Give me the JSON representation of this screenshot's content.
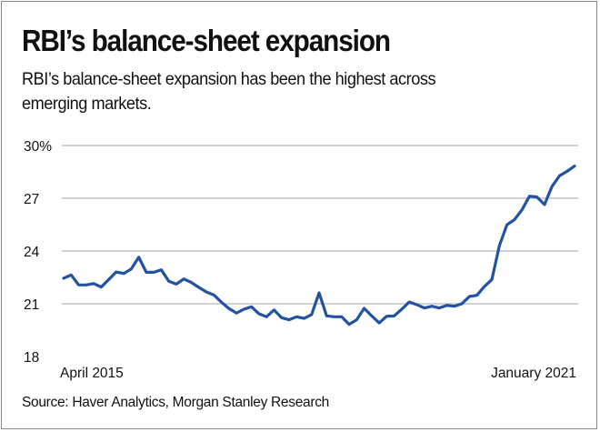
{
  "chart_data": {
    "type": "line",
    "title": "RBI’s balance-sheet expansion",
    "subtitle": "RBI’s balance-sheet expansion has been the highest across emerging markets.",
    "source": "Source: Haver Analytics, Morgan Stanley Research",
    "x_start_label": "April 2015",
    "x_end_label": "January 2021",
    "frequency": "monthly",
    "ylim": [
      18,
      30
    ],
    "y_ticks": [
      30,
      27,
      24,
      21,
      18
    ],
    "y_tick_labels": [
      "30%",
      "27",
      "24",
      "21",
      "18"
    ],
    "grid": true,
    "line_color": "#2352a0",
    "values": [
      22.45,
      22.64,
      22.07,
      22.07,
      22.15,
      21.95,
      22.38,
      22.81,
      22.72,
      22.98,
      23.65,
      22.79,
      22.79,
      22.93,
      22.28,
      22.12,
      22.41,
      22.21,
      21.93,
      21.67,
      21.5,
      21.09,
      20.73,
      20.47,
      20.69,
      20.83,
      20.43,
      20.26,
      20.65,
      20.21,
      20.09,
      20.26,
      20.17,
      20.38,
      21.62,
      20.31,
      20.26,
      20.26,
      19.83,
      20.09,
      20.74,
      20.31,
      19.91,
      20.29,
      20.31,
      20.69,
      21.1,
      20.95,
      20.76,
      20.86,
      20.76,
      20.91,
      20.86,
      21.0,
      21.41,
      21.48,
      21.98,
      22.38,
      24.31,
      25.49,
      25.78,
      26.34,
      27.12,
      27.07,
      26.64,
      27.67,
      28.28,
      28.53,
      28.83
    ]
  }
}
